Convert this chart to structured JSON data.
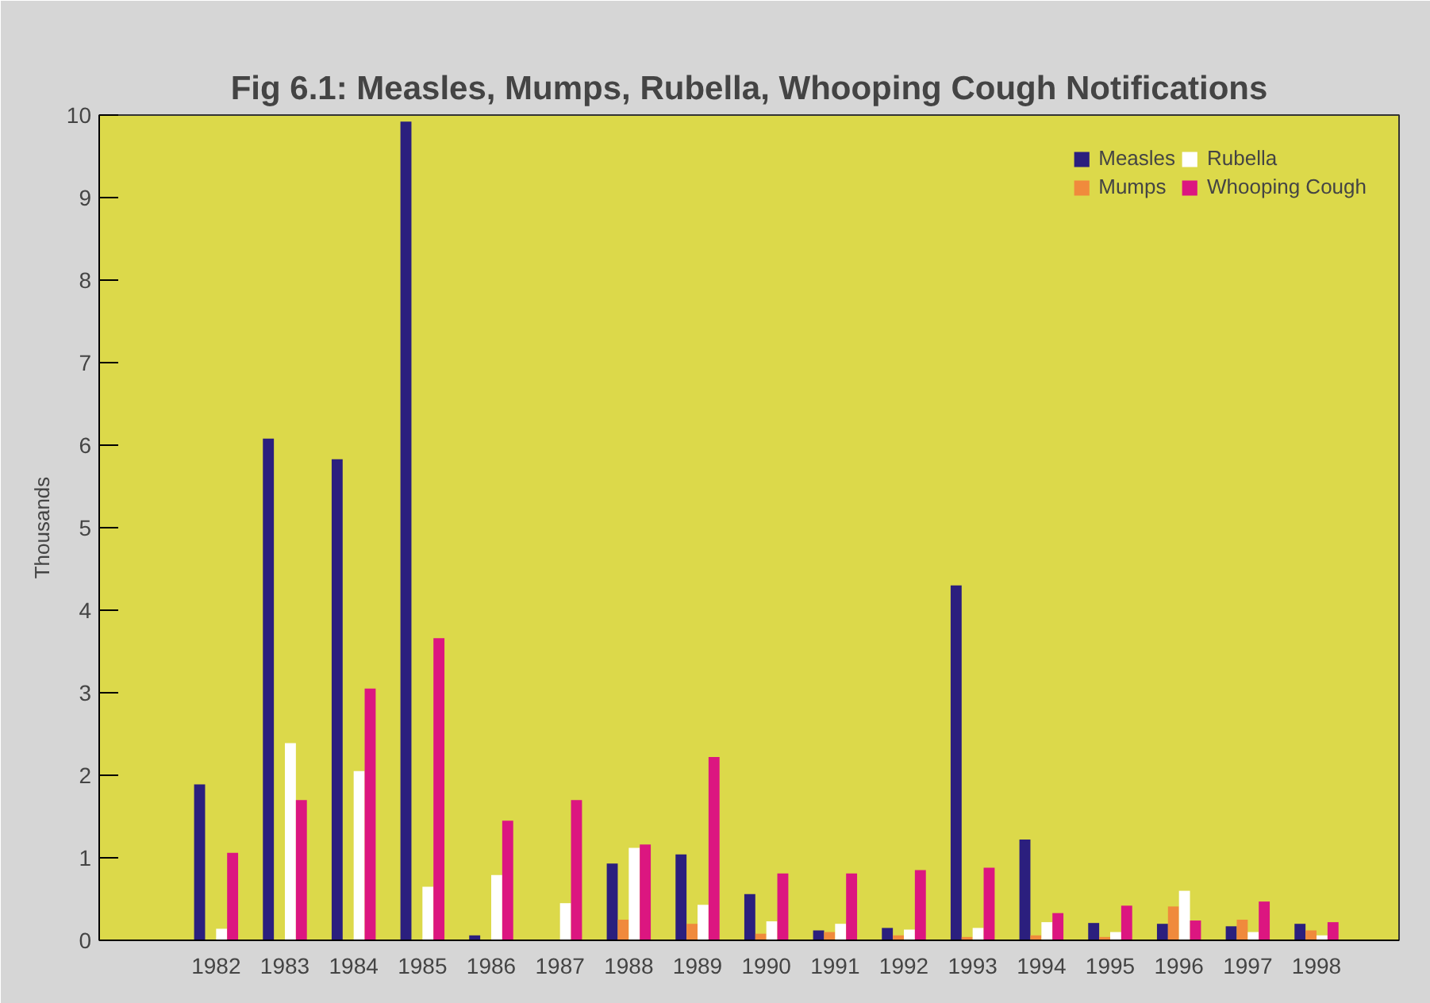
{
  "chart_data": {
    "type": "bar",
    "title": "Fig 6.1: Measles, Mumps, Rubella, Whooping Cough Notifications",
    "ylabel": "Thousands",
    "categories": [
      "1982",
      "1983",
      "1984",
      "1985",
      "1986",
      "1987",
      "1988",
      "1989",
      "1990",
      "1991",
      "1992",
      "1993",
      "1994",
      "1995",
      "1996",
      "1997",
      "1998"
    ],
    "series": [
      {
        "name": "Measles",
        "color": "#2b1f7e",
        "values": [
          1.89,
          6.08,
          5.83,
          9.92,
          0.06,
          0,
          0.93,
          1.04,
          0.56,
          0.12,
          0.15,
          4.3,
          1.22,
          0.21,
          0.2,
          0.17,
          0.2
        ]
      },
      {
        "name": "Mumps",
        "color": "#f08a3c",
        "values": [
          0,
          0,
          0,
          0,
          0,
          0,
          0.25,
          0.2,
          0.08,
          0.1,
          0.06,
          0.04,
          0.06,
          0.04,
          0.41,
          0.25,
          0.12
        ]
      },
      {
        "name": "Rubella",
        "color": "#ffffff",
        "values": [
          0.14,
          2.39,
          2.05,
          0.65,
          0.79,
          0.45,
          1.12,
          0.43,
          0.23,
          0.2,
          0.13,
          0.15,
          0.22,
          0.1,
          0.6,
          0.1,
          0.06
        ]
      },
      {
        "name": "Whooping Cough",
        "color": "#dc1680",
        "values": [
          1.06,
          1.7,
          3.05,
          3.66,
          1.45,
          1.7,
          1.16,
          2.22,
          0.81,
          0.81,
          0.85,
          0.88,
          0.33,
          0.42,
          0.24,
          0.47,
          0.22
        ]
      }
    ],
    "ylim": [
      0,
      10
    ],
    "yticks": [
      0,
      1,
      2,
      3,
      4,
      5,
      6,
      7,
      8,
      9,
      10
    ],
    "grid": false,
    "legend": "top right"
  }
}
